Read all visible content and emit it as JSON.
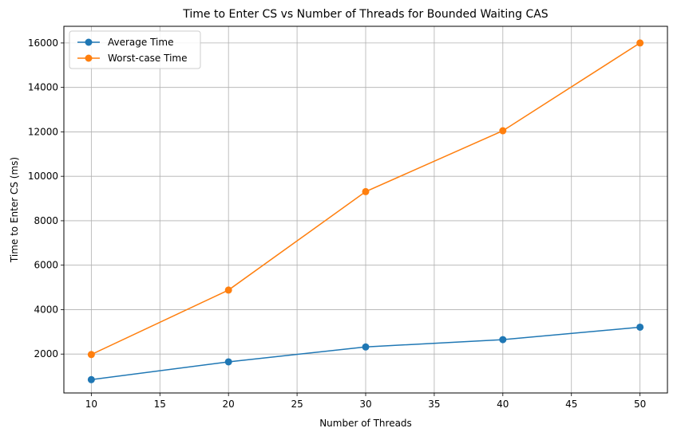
{
  "chart_data": {
    "type": "line",
    "title": "Time to Enter CS vs Number of Threads for Bounded Waiting CAS",
    "xlabel": "Number of Threads",
    "ylabel": "Time to Enter CS (ms)",
    "x": [
      10,
      20,
      30,
      40,
      50
    ],
    "xlim": [
      8,
      52
    ],
    "ylim": [
      250,
      16750
    ],
    "xticks": [
      10,
      15,
      20,
      25,
      30,
      35,
      40,
      45,
      50
    ],
    "yticks": [
      2000,
      4000,
      6000,
      8000,
      10000,
      12000,
      14000,
      16000
    ],
    "grid": true,
    "legend_position": "top-left",
    "series": [
      {
        "name": "Average Time",
        "color": "#1f77b4",
        "marker": "circle",
        "values": [
          850,
          1650,
          2320,
          2650,
          3210
        ]
      },
      {
        "name": "Worst-case Time",
        "color": "#ff7f0e",
        "marker": "circle",
        "values": [
          1980,
          4880,
          9310,
          12050,
          16000
        ]
      }
    ]
  }
}
